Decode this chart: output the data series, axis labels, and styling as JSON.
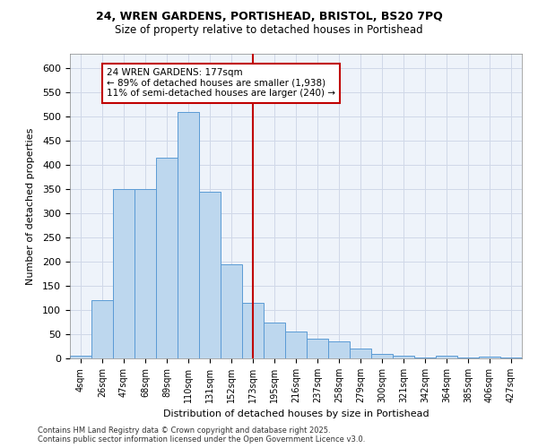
{
  "title_line1": "24, WREN GARDENS, PORTISHEAD, BRISTOL, BS20 7PQ",
  "title_line2": "Size of property relative to detached houses in Portishead",
  "xlabel": "Distribution of detached houses by size in Portishead",
  "ylabel": "Number of detached properties",
  "footnote": "Contains HM Land Registry data © Crown copyright and database right 2025.\nContains public sector information licensed under the Open Government Licence v3.0.",
  "bin_labels": [
    "4sqm",
    "26sqm",
    "47sqm",
    "68sqm",
    "89sqm",
    "110sqm",
    "131sqm",
    "152sqm",
    "173sqm",
    "195sqm",
    "216sqm",
    "237sqm",
    "258sqm",
    "279sqm",
    "300sqm",
    "321sqm",
    "342sqm",
    "364sqm",
    "385sqm",
    "406sqm",
    "427sqm"
  ],
  "bar_values": [
    5,
    120,
    350,
    350,
    415,
    510,
    345,
    195,
    115,
    75,
    55,
    40,
    35,
    20,
    10,
    5,
    2,
    5,
    2,
    3,
    2
  ],
  "bar_color": "#BDD7EE",
  "bar_edge_color": "#5B9BD5",
  "grid_color": "#D0D8E8",
  "background_color": "#EEF3FA",
  "vline_index": 8,
  "vline_color": "#C00000",
  "annotation_text": "24 WREN GARDENS: 177sqm\n← 89% of detached houses are smaller (1,938)\n11% of semi-detached houses are larger (240) →",
  "annotation_box_color": "#C00000",
  "ylim": [
    0,
    630
  ],
  "yticks": [
    0,
    50,
    100,
    150,
    200,
    250,
    300,
    350,
    400,
    450,
    500,
    550,
    600
  ]
}
